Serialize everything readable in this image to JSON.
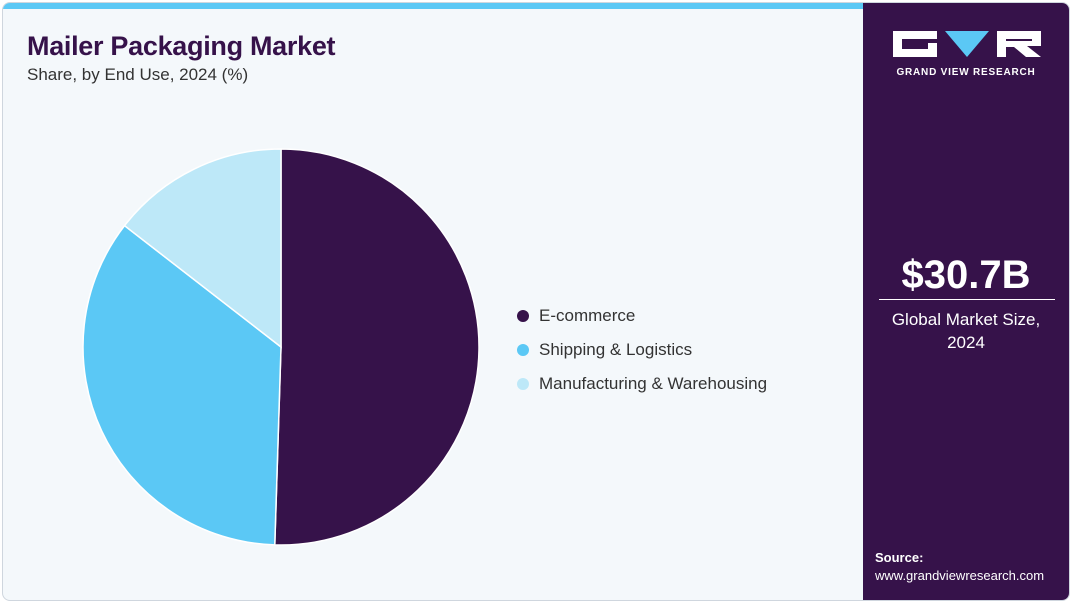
{
  "chart_data": {
    "type": "pie",
    "title": "Mailer Packaging Market",
    "subtitle": "Share, by End Use, 2024 (%)",
    "slices": [
      {
        "label": "E-commerce",
        "value": 50.5,
        "color": "#36124a"
      },
      {
        "label": "Shipping & Logistics",
        "value": 35.0,
        "color": "#5bc8f5"
      },
      {
        "label": "Manufacturing & Warehousing",
        "value": 14.5,
        "color": "#bde8f8"
      }
    ],
    "start_angle_deg": 0,
    "direction": "clockwise",
    "legend_position": "right"
  },
  "brand": {
    "logo_text": "GRAND VIEW RESEARCH",
    "panel_color": "#36124a",
    "accent_color": "#5bc8f5"
  },
  "market": {
    "value": "$30.7B",
    "label_line1": "Global Market Size,",
    "label_line2": "2024"
  },
  "source": {
    "label": "Source:",
    "url": "www.grandviewresearch.com"
  }
}
